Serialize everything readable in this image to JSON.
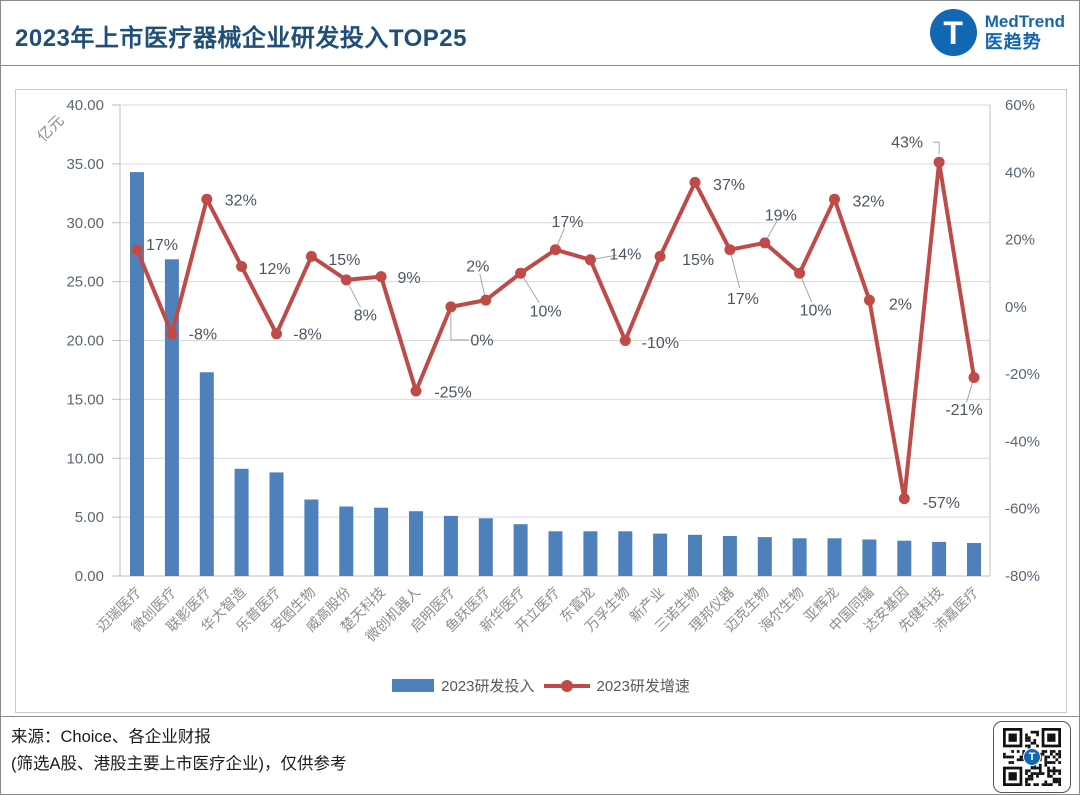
{
  "header": {
    "title": "2023年上市医疗器械企业研发投入TOP25",
    "brand": {
      "initial": "T",
      "name_en": "MedTrend",
      "name_zh": "医趋势",
      "color": "#1167B1"
    }
  },
  "chart_data": {
    "type": "bar",
    "subtype": "bar+line dual-axis combo",
    "title": "2023年上市医疗器械企业研发投入TOP25",
    "unit_label": "亿元",
    "categories": [
      "迈瑞医疗",
      "微创医疗",
      "联影医疗",
      "华大智造",
      "乐普医疗",
      "安图生物",
      "威高股份",
      "楚天科技",
      "微创机器人",
      "启明医疗",
      "鱼跃医疗",
      "新华医疗",
      "开立医疗",
      "东富龙",
      "万孚生物",
      "新产业",
      "三诺生物",
      "理邦仪器",
      "迈克生物",
      "海尔生物",
      "亚辉龙",
      "中国同辐",
      "达安基因",
      "先健科技",
      "沛嘉医疗"
    ],
    "series": [
      {
        "name": "2023研发投入",
        "type": "bar",
        "axis": "left",
        "unit": "亿元",
        "color": "#4E81BB",
        "values": [
          34.3,
          26.9,
          17.3,
          9.1,
          8.8,
          6.5,
          5.9,
          5.8,
          5.5,
          5.1,
          4.9,
          4.4,
          3.8,
          3.8,
          3.8,
          3.6,
          3.5,
          3.4,
          3.3,
          3.2,
          3.2,
          3.1,
          3.0,
          2.9,
          2.8
        ]
      },
      {
        "name": "2023研发增速",
        "type": "line",
        "axis": "right",
        "unit": "%",
        "color": "#BE4B48",
        "values": [
          17,
          -8,
          32,
          12,
          -8,
          15,
          8,
          9,
          -25,
          0,
          2,
          10,
          17,
          14,
          -10,
          15,
          37,
          17,
          19,
          10,
          32,
          2,
          -57,
          43,
          -21
        ]
      }
    ],
    "left_axis": {
      "min": 0,
      "max": 40,
      "step": 5,
      "decimals": 2
    },
    "right_axis": {
      "min": -80,
      "max": 60,
      "step": 20,
      "suffix": "%"
    },
    "grid": "horizontal gridlines at left-axis ticks",
    "legend_position": "bottom",
    "label_layout": [
      [
        25,
        -5,
        0
      ],
      [
        31,
        0,
        0
      ],
      [
        34,
        1,
        0
      ],
      [
        33,
        2,
        0
      ],
      [
        31,
        0,
        0
      ],
      [
        33,
        3,
        0
      ],
      [
        19,
        35,
        1
      ],
      [
        28,
        1,
        0
      ],
      [
        37,
        1,
        0
      ],
      [
        31,
        33,
        3
      ],
      [
        -8,
        -34,
        1
      ],
      [
        25,
        38,
        1
      ],
      [
        12,
        -28,
        1
      ],
      [
        35,
        -6,
        1
      ],
      [
        35,
        2,
        0
      ],
      [
        38,
        3,
        0
      ],
      [
        34,
        2,
        0
      ],
      [
        13,
        49,
        1
      ],
      [
        16,
        -28,
        1
      ],
      [
        16,
        37,
        1
      ],
      [
        34,
        2,
        0
      ],
      [
        31,
        4,
        0
      ],
      [
        37,
        4,
        0
      ],
      [
        -32,
        -20,
        2
      ],
      [
        -10,
        32,
        1
      ]
    ]
  },
  "footer": {
    "source_line1": "来源：Choice、各企业财报",
    "source_line2": "(筛选A股、港股主要上市医疗企业)，仅供参考"
  }
}
